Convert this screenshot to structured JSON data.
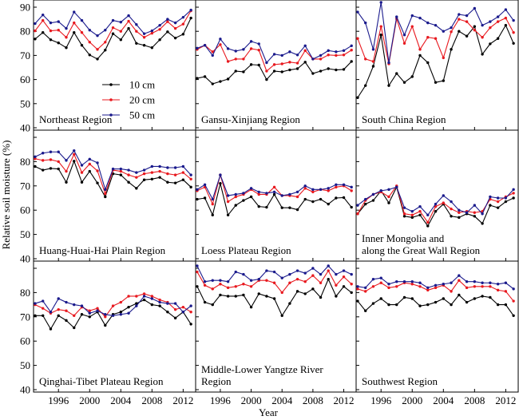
{
  "chart_data": {
    "type": "line",
    "layout": "3x3 grid of small multiples, shared x and y axes",
    "xlabel": "Year",
    "ylabel": "Relative soil moisture (%)",
    "x": [
      1993,
      1994,
      1995,
      1996,
      1997,
      1998,
      1999,
      2000,
      2001,
      2002,
      2003,
      2004,
      2005,
      2006,
      2007,
      2008,
      2009,
      2010,
      2011,
      2012,
      2013
    ],
    "xticks": [
      1996,
      2000,
      2004,
      2008,
      2012
    ],
    "xlim": [
      1992.8,
      2013.6
    ],
    "ylim": [
      40,
      90
    ],
    "yticks": [
      40,
      50,
      60,
      70,
      80,
      90
    ],
    "legend": {
      "placement": "inside Northeast Region panel, lower middle",
      "entries": [
        {
          "label": "10 cm",
          "color": "#000000"
        },
        {
          "label": "20 cm",
          "color": "#e8191f"
        },
        {
          "label": "50 cm",
          "color": "#1a1a8c"
        }
      ]
    },
    "panels": [
      {
        "title": [
          "Northeast Region"
        ],
        "series": [
          {
            "name": "10 cm",
            "values": [
              76.8,
              79.5,
              76.5,
              75.2,
              73.2,
              79.5,
              74.2,
              70.2,
              68.5,
              72.2,
              79.0,
              76.5,
              81.2,
              75.0,
              74.2,
              73.2,
              76.5,
              79.8,
              77.2,
              78.8,
              85.5
            ]
          },
          {
            "name": "20 cm",
            "values": [
              80.2,
              84.5,
              80.2,
              80.5,
              77.5,
              83.5,
              79.5,
              75.5,
              72.5,
              75.5,
              81.5,
              80.0,
              84.2,
              80.0,
              77.5,
              79.2,
              80.8,
              84.0,
              81.2,
              83.0,
              88.5
            ]
          },
          {
            "name": "50 cm",
            "values": [
              83.2,
              86.8,
              83.5,
              84.0,
              81.2,
              88.0,
              84.5,
              80.5,
              78.2,
              80.5,
              84.5,
              83.8,
              86.5,
              82.8,
              79.0,
              80.2,
              82.5,
              85.0,
              83.5,
              85.8,
              88.8
            ]
          }
        ]
      },
      {
        "title": [
          "Gansu-Xinjiang Region"
        ],
        "series": [
          {
            "name": "10 cm",
            "values": [
              60.5,
              61.2,
              58.2,
              59.2,
              60.2,
              63.5,
              63.2,
              66.2,
              66.0,
              60.0,
              63.5,
              63.2,
              64.0,
              64.5,
              67.2,
              62.5,
              63.5,
              64.5,
              64.0,
              64.2,
              67.5
            ]
          },
          {
            "name": "20 cm",
            "values": [
              72.5,
              74.2,
              71.5,
              74.5,
              67.5,
              68.5,
              68.5,
              72.8,
              72.2,
              63.5,
              66.2,
              66.5,
              67.2,
              66.8,
              72.0,
              68.5,
              68.5,
              70.2,
              70.0,
              70.2,
              72.2
            ]
          },
          {
            "name": "50 cm",
            "values": [
              73.0,
              74.2,
              70.0,
              76.8,
              72.8,
              71.8,
              72.5,
              75.8,
              74.8,
              67.0,
              70.5,
              70.0,
              71.5,
              70.2,
              74.0,
              68.5,
              70.0,
              72.0,
              71.5,
              72.0,
              74.0
            ]
          }
        ]
      },
      {
        "title": [
          "South China Region"
        ],
        "series": [
          {
            "name": "10 cm",
            "values": [
              52.5,
              57.5,
              65.5,
              78.5,
              57.5,
              62.5,
              58.8,
              61.2,
              70.0,
              67.0,
              58.8,
              59.5,
              72.5,
              80.0,
              78.0,
              82.0,
              70.5,
              74.8,
              77.0,
              82.5,
              75.0
            ]
          },
          {
            "name": "20 cm",
            "values": [
              77.0,
              68.5,
              67.5,
              82.0,
              66.5,
              85.2,
              75.0,
              82.0,
              72.5,
              77.5,
              77.0,
              69.0,
              79.8,
              85.0,
              84.0,
              80.5,
              77.5,
              81.5,
              84.0,
              85.5,
              79.5
            ]
          },
          {
            "name": "50 cm",
            "values": [
              88.0,
              83.5,
              72.5,
              92.0,
              67.0,
              86.0,
              78.5,
              86.5,
              85.5,
              83.5,
              82.5,
              80.0,
              81.5,
              87.0,
              86.5,
              89.5,
              82.5,
              84.0,
              86.0,
              89.0,
              84.5
            ]
          }
        ]
      },
      {
        "title": [
          "Huang-Huai-Hai Plain Region"
        ],
        "series": [
          {
            "name": "10 cm",
            "values": [
              78.0,
              76.5,
              77.2,
              77.0,
              71.5,
              80.2,
              71.5,
              76.0,
              71.2,
              65.5,
              75.0,
              74.5,
              71.5,
              69.0,
              72.5,
              72.8,
              73.5,
              71.5,
              71.2,
              72.5,
              69.5
            ]
          },
          {
            "name": "20 cm",
            "values": [
              81.2,
              80.5,
              80.8,
              80.0,
              76.0,
              83.0,
              75.5,
              79.0,
              76.2,
              66.8,
              76.5,
              76.0,
              74.5,
              73.5,
              75.0,
              75.5,
              76.0,
              75.0,
              74.5,
              75.5,
              72.8
            ]
          },
          {
            "name": "50 cm",
            "values": [
              82.0,
              83.5,
              84.0,
              84.0,
              80.5,
              84.5,
              78.5,
              81.0,
              79.5,
              68.5,
              77.0,
              77.0,
              76.5,
              75.5,
              76.5,
              78.0,
              78.0,
              77.5,
              77.5,
              78.0,
              74.5
            ]
          }
        ]
      },
      {
        "title": [
          "Loess Plateau Region"
        ],
        "series": [
          {
            "name": "10 cm",
            "values": [
              64.5,
              65.0,
              58.0,
              71.0,
              58.0,
              62.0,
              64.0,
              65.5,
              61.5,
              61.2,
              66.5,
              61.0,
              61.0,
              60.2,
              64.5,
              63.5,
              64.5,
              62.5,
              65.0,
              65.2,
              61.2
            ]
          },
          {
            "name": "20 cm",
            "values": [
              68.0,
              69.5,
              62.5,
              74.5,
              63.5,
              65.5,
              66.5,
              68.5,
              66.5,
              66.5,
              69.5,
              66.0,
              66.0,
              65.5,
              69.0,
              67.5,
              68.5,
              68.0,
              69.5,
              70.0,
              68.0
            ]
          },
          {
            "name": "50 cm",
            "values": [
              68.5,
              70.5,
              64.5,
              74.5,
              66.0,
              66.5,
              67.0,
              69.0,
              67.5,
              67.0,
              67.5,
              66.0,
              66.5,
              67.5,
              70.0,
              68.5,
              68.5,
              69.0,
              70.5,
              70.5,
              69.5
            ]
          }
        ]
      },
      {
        "title": [
          "Inner Mongolia and",
          "along the Great Wall Region"
        ],
        "series": [
          {
            "name": "10 cm",
            "values": [
              58.5,
              62.5,
              64.0,
              68.0,
              63.0,
              69.5,
              57.5,
              57.0,
              58.0,
              53.5,
              59.5,
              62.5,
              57.5,
              57.0,
              58.5,
              57.5,
              54.5,
              62.0,
              61.0,
              63.5,
              65.0
            ]
          },
          {
            "name": "20 cm",
            "values": [
              58.5,
              64.0,
              66.5,
              67.5,
              65.5,
              70.0,
              58.5,
              58.0,
              59.5,
              55.0,
              61.5,
              63.0,
              60.5,
              59.0,
              59.5,
              59.0,
              59.5,
              64.5,
              63.5,
              65.5,
              67.0
            ]
          },
          {
            "name": "50 cm",
            "values": [
              62.0,
              64.5,
              66.5,
              68.0,
              68.5,
              69.5,
              61.0,
              59.5,
              61.5,
              58.0,
              62.5,
              66.0,
              63.5,
              60.0,
              59.0,
              62.0,
              58.5,
              65.5,
              65.0,
              65.0,
              68.5
            ]
          }
        ]
      },
      {
        "title": [
          "Qinghai-Tibet Plateau Region"
        ],
        "series": [
          {
            "name": "10 cm",
            "values": [
              70.5,
              70.5,
              65.0,
              70.5,
              68.5,
              65.5,
              71.0,
              70.0,
              72.0,
              66.5,
              71.0,
              72.0,
              74.0,
              75.5,
              77.0,
              75.0,
              74.5,
              72.0,
              69.5,
              72.0,
              67.0
            ]
          },
          {
            "name": "20 cm",
            "values": [
              75.0,
              73.5,
              71.5,
              73.0,
              72.5,
              70.5,
              74.0,
              72.5,
              73.5,
              70.0,
              74.5,
              76.0,
              78.5,
              78.5,
              79.5,
              78.5,
              77.0,
              76.0,
              73.0,
              74.0,
              72.0
            ]
          },
          {
            "name": "50 cm",
            "values": [
              75.5,
              76.5,
              72.0,
              77.5,
              76.0,
              75.0,
              74.5,
              71.5,
              72.5,
              71.0,
              70.5,
              71.0,
              71.5,
              74.5,
              78.5,
              77.5,
              76.0,
              75.5,
              75.5,
              72.0,
              74.5
            ]
          }
        ]
      },
      {
        "title": [
          "Middle-Lower Yangtze River",
          "Region"
        ],
        "series": [
          {
            "name": "10 cm",
            "values": [
              82.5,
              76.0,
              75.0,
              79.0,
              78.5,
              78.5,
              79.0,
              74.0,
              79.5,
              78.5,
              77.5,
              70.5,
              75.5,
              80.5,
              79.5,
              81.5,
              78.0,
              85.5,
              78.5,
              82.5,
              80.0
            ]
          },
          {
            "name": "20 cm",
            "values": [
              88.5,
              83.0,
              81.5,
              83.5,
              82.0,
              82.5,
              83.5,
              82.5,
              85.0,
              85.0,
              84.0,
              80.0,
              84.0,
              85.5,
              84.5,
              87.0,
              84.0,
              89.0,
              83.0,
              86.5,
              83.5
            ]
          },
          {
            "name": "50 cm",
            "values": [
              91.0,
              84.5,
              85.0,
              85.0,
              84.5,
              88.5,
              87.5,
              85.0,
              85.5,
              89.0,
              88.5,
              86.0,
              87.5,
              89.0,
              88.0,
              90.0,
              87.5,
              91.0,
              87.5,
              89.0,
              87.5
            ]
          }
        ]
      },
      {
        "title": [
          "Southwest Region"
        ],
        "series": [
          {
            "name": "10 cm",
            "values": [
              76.5,
              72.5,
              75.5,
              77.5,
              75.0,
              75.0,
              78.0,
              77.5,
              74.5,
              75.0,
              76.0,
              77.5,
              75.0,
              79.0,
              76.0,
              77.5,
              78.5,
              78.0,
              75.0,
              75.0,
              70.5
            ]
          },
          {
            "name": "20 cm",
            "values": [
              81.5,
              80.5,
              82.5,
              84.0,
              82.0,
              82.5,
              84.0,
              83.5,
              82.5,
              81.0,
              82.0,
              83.0,
              80.5,
              85.0,
              82.0,
              82.5,
              82.5,
              82.5,
              81.0,
              80.5,
              76.5
            ]
          },
          {
            "name": "50 cm",
            "values": [
              82.5,
              82.0,
              85.5,
              86.0,
              83.5,
              84.5,
              84.5,
              84.5,
              84.0,
              82.0,
              83.0,
              83.5,
              84.0,
              87.0,
              84.5,
              84.5,
              84.0,
              84.0,
              83.5,
              84.0,
              81.5
            ]
          }
        ]
      }
    ]
  }
}
